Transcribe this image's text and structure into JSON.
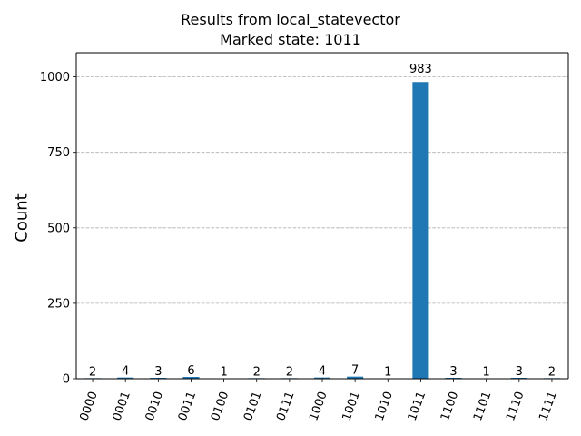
{
  "chart_data": {
    "type": "bar",
    "title": "Results from local_statevector",
    "subtitle": "Marked state: 1011",
    "xlabel": "",
    "ylabel": "Count",
    "categories": [
      "0000",
      "0001",
      "0010",
      "0011",
      "0100",
      "0101",
      "0111",
      "1000",
      "1001",
      "1010",
      "1011",
      "1100",
      "1101",
      "1110",
      "1111"
    ],
    "values": [
      2,
      4,
      3,
      6,
      1,
      2,
      2,
      4,
      7,
      1,
      983,
      3,
      1,
      3,
      2
    ],
    "ylim": [
      0,
      1080
    ],
    "yticks": [
      0,
      250,
      500,
      750,
      1000
    ],
    "grid": true,
    "bar_color": "#1f77b4",
    "grid_color": "#b0b0b0"
  }
}
